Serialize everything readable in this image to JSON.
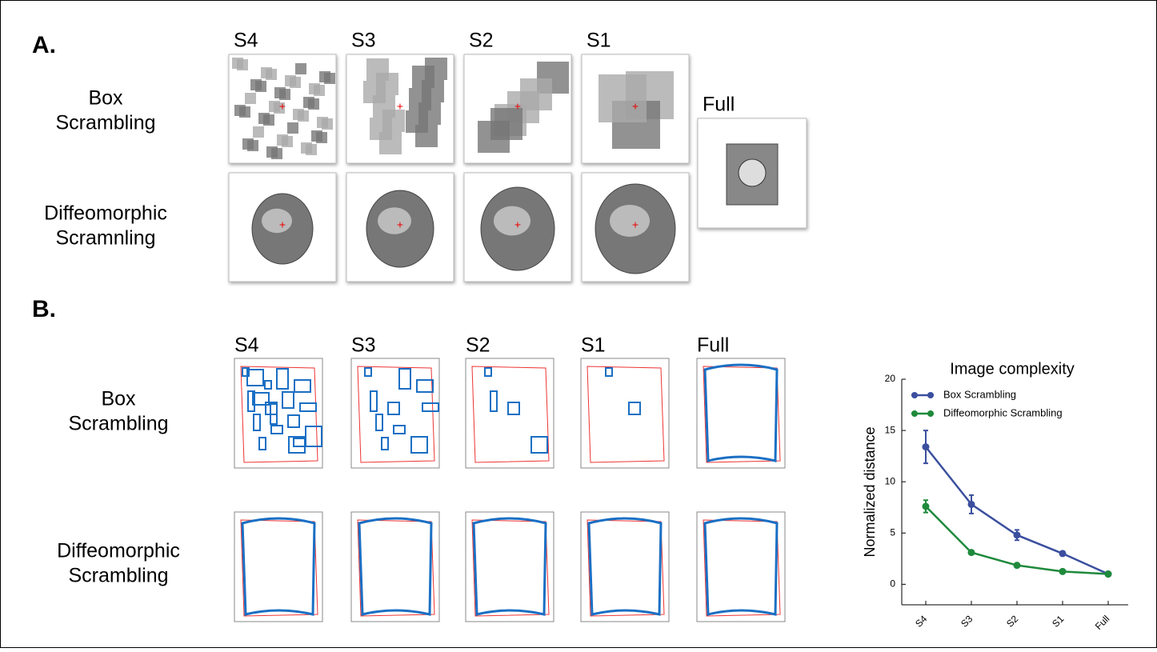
{
  "figure": {
    "panel_a": {
      "label": "A.",
      "columns": [
        "S4",
        "S3",
        "S2",
        "S1"
      ],
      "full_label": "Full",
      "rows": [
        [
          "Box",
          "Scrambling"
        ],
        [
          "Diffeomorphic",
          "Scramnling"
        ]
      ]
    },
    "panel_b": {
      "label": "B.",
      "columns": [
        "S4",
        "S3",
        "S2",
        "S1",
        "Full"
      ],
      "rows": [
        [
          "Box",
          "Scrambling"
        ],
        [
          "Diffeomorphic",
          "Scrambling"
        ]
      ]
    }
  },
  "chart_data": {
    "type": "line",
    "title": "Image complexity",
    "y_label": "Normalized distance",
    "categories": [
      "S4",
      "S3",
      "S2",
      "S1",
      "Full"
    ],
    "series": [
      {
        "name": "Box Scrambling",
        "color": "#3b4f9e",
        "values": [
          13.4,
          7.8,
          4.8,
          3.0,
          1.0
        ],
        "errors": [
          1.6,
          0.9,
          0.5,
          0.2,
          0.1
        ]
      },
      {
        "name": "Diffeomorphic Scrambling",
        "color": "#1f8a3c",
        "values": [
          7.6,
          3.1,
          1.85,
          1.25,
          1.0
        ],
        "errors": [
          0.6,
          0.15,
          0.1,
          0.1,
          0.1
        ]
      }
    ],
    "ylim": [
      -2,
      20
    ],
    "yticks": [
      0,
      5,
      10,
      15,
      20
    ],
    "legend": "upper left"
  }
}
